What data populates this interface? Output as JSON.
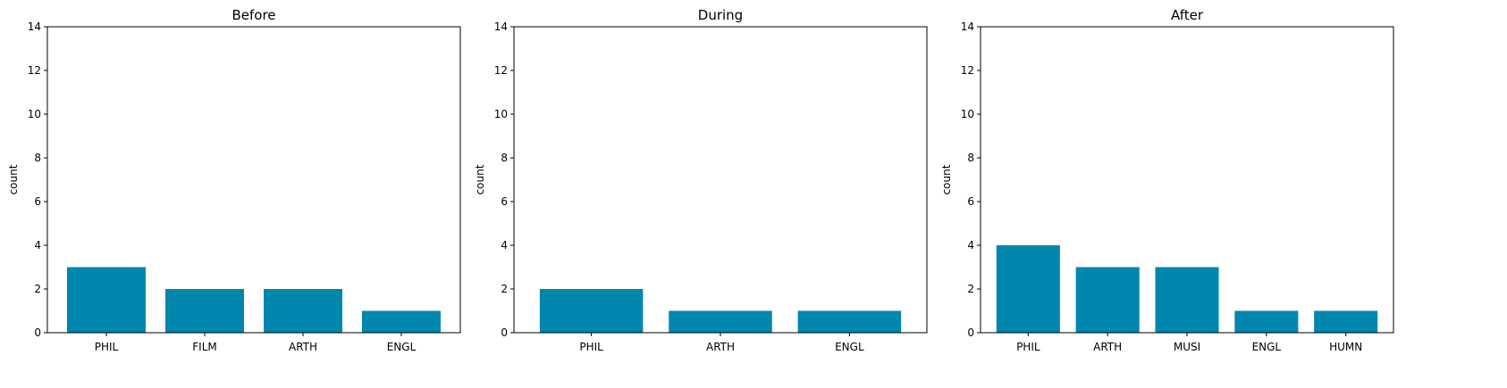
{
  "chart_data": [
    {
      "type": "bar",
      "title": "Before",
      "ylabel": "count",
      "xlabel": "",
      "categories": [
        "PHIL",
        "FILM",
        "ARTH",
        "ENGL"
      ],
      "values": [
        3,
        2,
        2,
        1
      ],
      "ylim": [
        0,
        14
      ],
      "yticks": [
        0,
        2,
        4,
        6,
        8,
        10,
        12,
        14
      ],
      "color": "#0087ae",
      "grid": false
    },
    {
      "type": "bar",
      "title": "During",
      "ylabel": "count",
      "xlabel": "",
      "categories": [
        "PHIL",
        "ARTH",
        "ENGL"
      ],
      "values": [
        2,
        1,
        1
      ],
      "ylim": [
        0,
        14
      ],
      "yticks": [
        0,
        2,
        4,
        6,
        8,
        10,
        12,
        14
      ],
      "color": "#0087ae",
      "grid": false
    },
    {
      "type": "bar",
      "title": "After",
      "ylabel": "count",
      "xlabel": "",
      "categories": [
        "PHIL",
        "ARTH",
        "MUSI",
        "ENGL",
        "HUMN"
      ],
      "values": [
        4,
        3,
        3,
        1,
        1
      ],
      "ylim": [
        0,
        14
      ],
      "yticks": [
        0,
        2,
        4,
        6,
        8,
        10,
        12,
        14
      ],
      "color": "#0087ae",
      "grid": false
    }
  ]
}
